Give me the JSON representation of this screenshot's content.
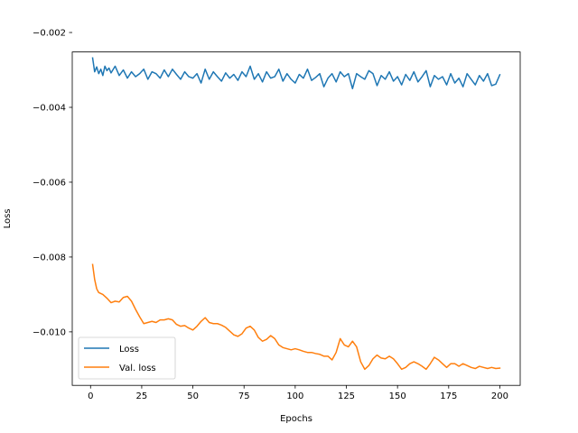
{
  "chart_data": {
    "type": "line",
    "title": "",
    "xlabel": "Epochs",
    "ylabel": "Loss",
    "xlim": [
      -8.95,
      209.95
    ],
    "ylim": [
      -0.01143,
      -0.00252
    ],
    "x_ticks": [
      0,
      25,
      50,
      75,
      100,
      125,
      150,
      175,
      200
    ],
    "x_tick_labels": [
      "0",
      "25",
      "50",
      "75",
      "100",
      "125",
      "150",
      "175",
      "200"
    ],
    "y_ticks": [
      -0.002,
      -0.004,
      -0.006,
      -0.008,
      -0.01
    ],
    "y_tick_labels": [
      "−0.002",
      "−0.004",
      "−0.006",
      "−0.008",
      "−0.010"
    ],
    "grid": false,
    "legend_position": "lower-left",
    "series": [
      {
        "name": "Loss",
        "color": "#1f77b4",
        "x": [
          1,
          2,
          3,
          4,
          5,
          6,
          7,
          8,
          9,
          10,
          12,
          14,
          16,
          18,
          20,
          22,
          24,
          26,
          28,
          30,
          32,
          34,
          36,
          38,
          40,
          42,
          44,
          46,
          48,
          50,
          52,
          54,
          56,
          58,
          60,
          62,
          64,
          66,
          68,
          70,
          72,
          74,
          76,
          78,
          80,
          82,
          84,
          86,
          88,
          90,
          92,
          94,
          96,
          98,
          100,
          102,
          104,
          106,
          108,
          110,
          112,
          114,
          116,
          118,
          120,
          122,
          124,
          126,
          128,
          130,
          132,
          134,
          136,
          138,
          140,
          142,
          144,
          146,
          148,
          150,
          152,
          154,
          156,
          158,
          160,
          162,
          164,
          166,
          168,
          170,
          172,
          174,
          176,
          178,
          180,
          182,
          184,
          186,
          188,
          190,
          192,
          194,
          196,
          198,
          200
        ],
        "values": [
          -0.00268,
          -0.00305,
          -0.00292,
          -0.0031,
          -0.00298,
          -0.00315,
          -0.0029,
          -0.00302,
          -0.00295,
          -0.00308,
          -0.0029,
          -0.00315,
          -0.003,
          -0.00322,
          -0.00305,
          -0.00318,
          -0.0031,
          -0.00298,
          -0.00325,
          -0.00305,
          -0.0031,
          -0.00322,
          -0.003,
          -0.00318,
          -0.00298,
          -0.00312,
          -0.00325,
          -0.00305,
          -0.00318,
          -0.00322,
          -0.0031,
          -0.00335,
          -0.00298,
          -0.00325,
          -0.00305,
          -0.00318,
          -0.0033,
          -0.00308,
          -0.00322,
          -0.00312,
          -0.00328,
          -0.00305,
          -0.00318,
          -0.0029,
          -0.00325,
          -0.0031,
          -0.00332,
          -0.00305,
          -0.00322,
          -0.00318,
          -0.00298,
          -0.0033,
          -0.0031,
          -0.00325,
          -0.00335,
          -0.00312,
          -0.00322,
          -0.00298,
          -0.00328,
          -0.0032,
          -0.0031,
          -0.00345,
          -0.00322,
          -0.0031,
          -0.00332,
          -0.00305,
          -0.00318,
          -0.0031,
          -0.0035,
          -0.0031,
          -0.00318,
          -0.00325,
          -0.00302,
          -0.0031,
          -0.00342,
          -0.00315,
          -0.00325,
          -0.00305,
          -0.0033,
          -0.00318,
          -0.0034,
          -0.00312,
          -0.00328,
          -0.00305,
          -0.00332,
          -0.00318,
          -0.00302,
          -0.00345,
          -0.00315,
          -0.00325,
          -0.00318,
          -0.0034,
          -0.0031,
          -0.00335,
          -0.00322,
          -0.00345,
          -0.0031,
          -0.00325,
          -0.0034,
          -0.00315,
          -0.0033,
          -0.0031,
          -0.00342,
          -0.00338,
          -0.00313
        ]
      },
      {
        "name": "Val. loss",
        "color": "#ff7f0e",
        "x": [
          1,
          2,
          3,
          4,
          6,
          8,
          10,
          12,
          14,
          16,
          18,
          20,
          22,
          24,
          26,
          28,
          30,
          32,
          34,
          36,
          38,
          40,
          42,
          44,
          46,
          48,
          50,
          52,
          54,
          56,
          58,
          60,
          62,
          64,
          66,
          68,
          70,
          72,
          74,
          76,
          78,
          80,
          82,
          84,
          86,
          88,
          90,
          92,
          94,
          96,
          98,
          100,
          102,
          104,
          106,
          108,
          110,
          112,
          114,
          116,
          118,
          120,
          122,
          124,
          126,
          128,
          130,
          132,
          134,
          136,
          138,
          140,
          142,
          144,
          146,
          148,
          150,
          152,
          154,
          156,
          158,
          160,
          162,
          164,
          166,
          168,
          170,
          172,
          174,
          176,
          178,
          180,
          182,
          184,
          186,
          188,
          190,
          192,
          194,
          196,
          198,
          200
        ],
        "values": [
          -0.0082,
          -0.0086,
          -0.00885,
          -0.00895,
          -0.009,
          -0.0091,
          -0.00922,
          -0.00918,
          -0.0092,
          -0.00908,
          -0.00905,
          -0.00918,
          -0.0094,
          -0.0096,
          -0.00978,
          -0.00975,
          -0.00972,
          -0.00975,
          -0.00968,
          -0.00968,
          -0.00965,
          -0.00968,
          -0.0098,
          -0.00985,
          -0.00983,
          -0.0099,
          -0.00995,
          -0.00985,
          -0.00972,
          -0.00962,
          -0.00975,
          -0.00978,
          -0.00978,
          -0.00982,
          -0.00988,
          -0.00998,
          -0.01008,
          -0.01012,
          -0.01005,
          -0.0099,
          -0.00985,
          -0.00995,
          -0.01015,
          -0.01025,
          -0.0102,
          -0.0101,
          -0.01018,
          -0.01035,
          -0.01042,
          -0.01045,
          -0.01048,
          -0.01045,
          -0.01048,
          -0.01052,
          -0.01055,
          -0.01055,
          -0.01058,
          -0.0106,
          -0.01065,
          -0.01065,
          -0.01075,
          -0.01055,
          -0.01018,
          -0.01035,
          -0.0104,
          -0.01025,
          -0.0104,
          -0.0108,
          -0.011,
          -0.0109,
          -0.01072,
          -0.01062,
          -0.0107,
          -0.01072,
          -0.01065,
          -0.01072,
          -0.01085,
          -0.011,
          -0.01095,
          -0.01085,
          -0.0108,
          -0.01085,
          -0.01092,
          -0.011,
          -0.01085,
          -0.01068,
          -0.01075,
          -0.01085,
          -0.01095,
          -0.01085,
          -0.01085,
          -0.01092,
          -0.01085,
          -0.0109,
          -0.01095,
          -0.01098,
          -0.01092,
          -0.01095,
          -0.01098,
          -0.01095,
          -0.01098,
          -0.01097
        ]
      }
    ]
  }
}
